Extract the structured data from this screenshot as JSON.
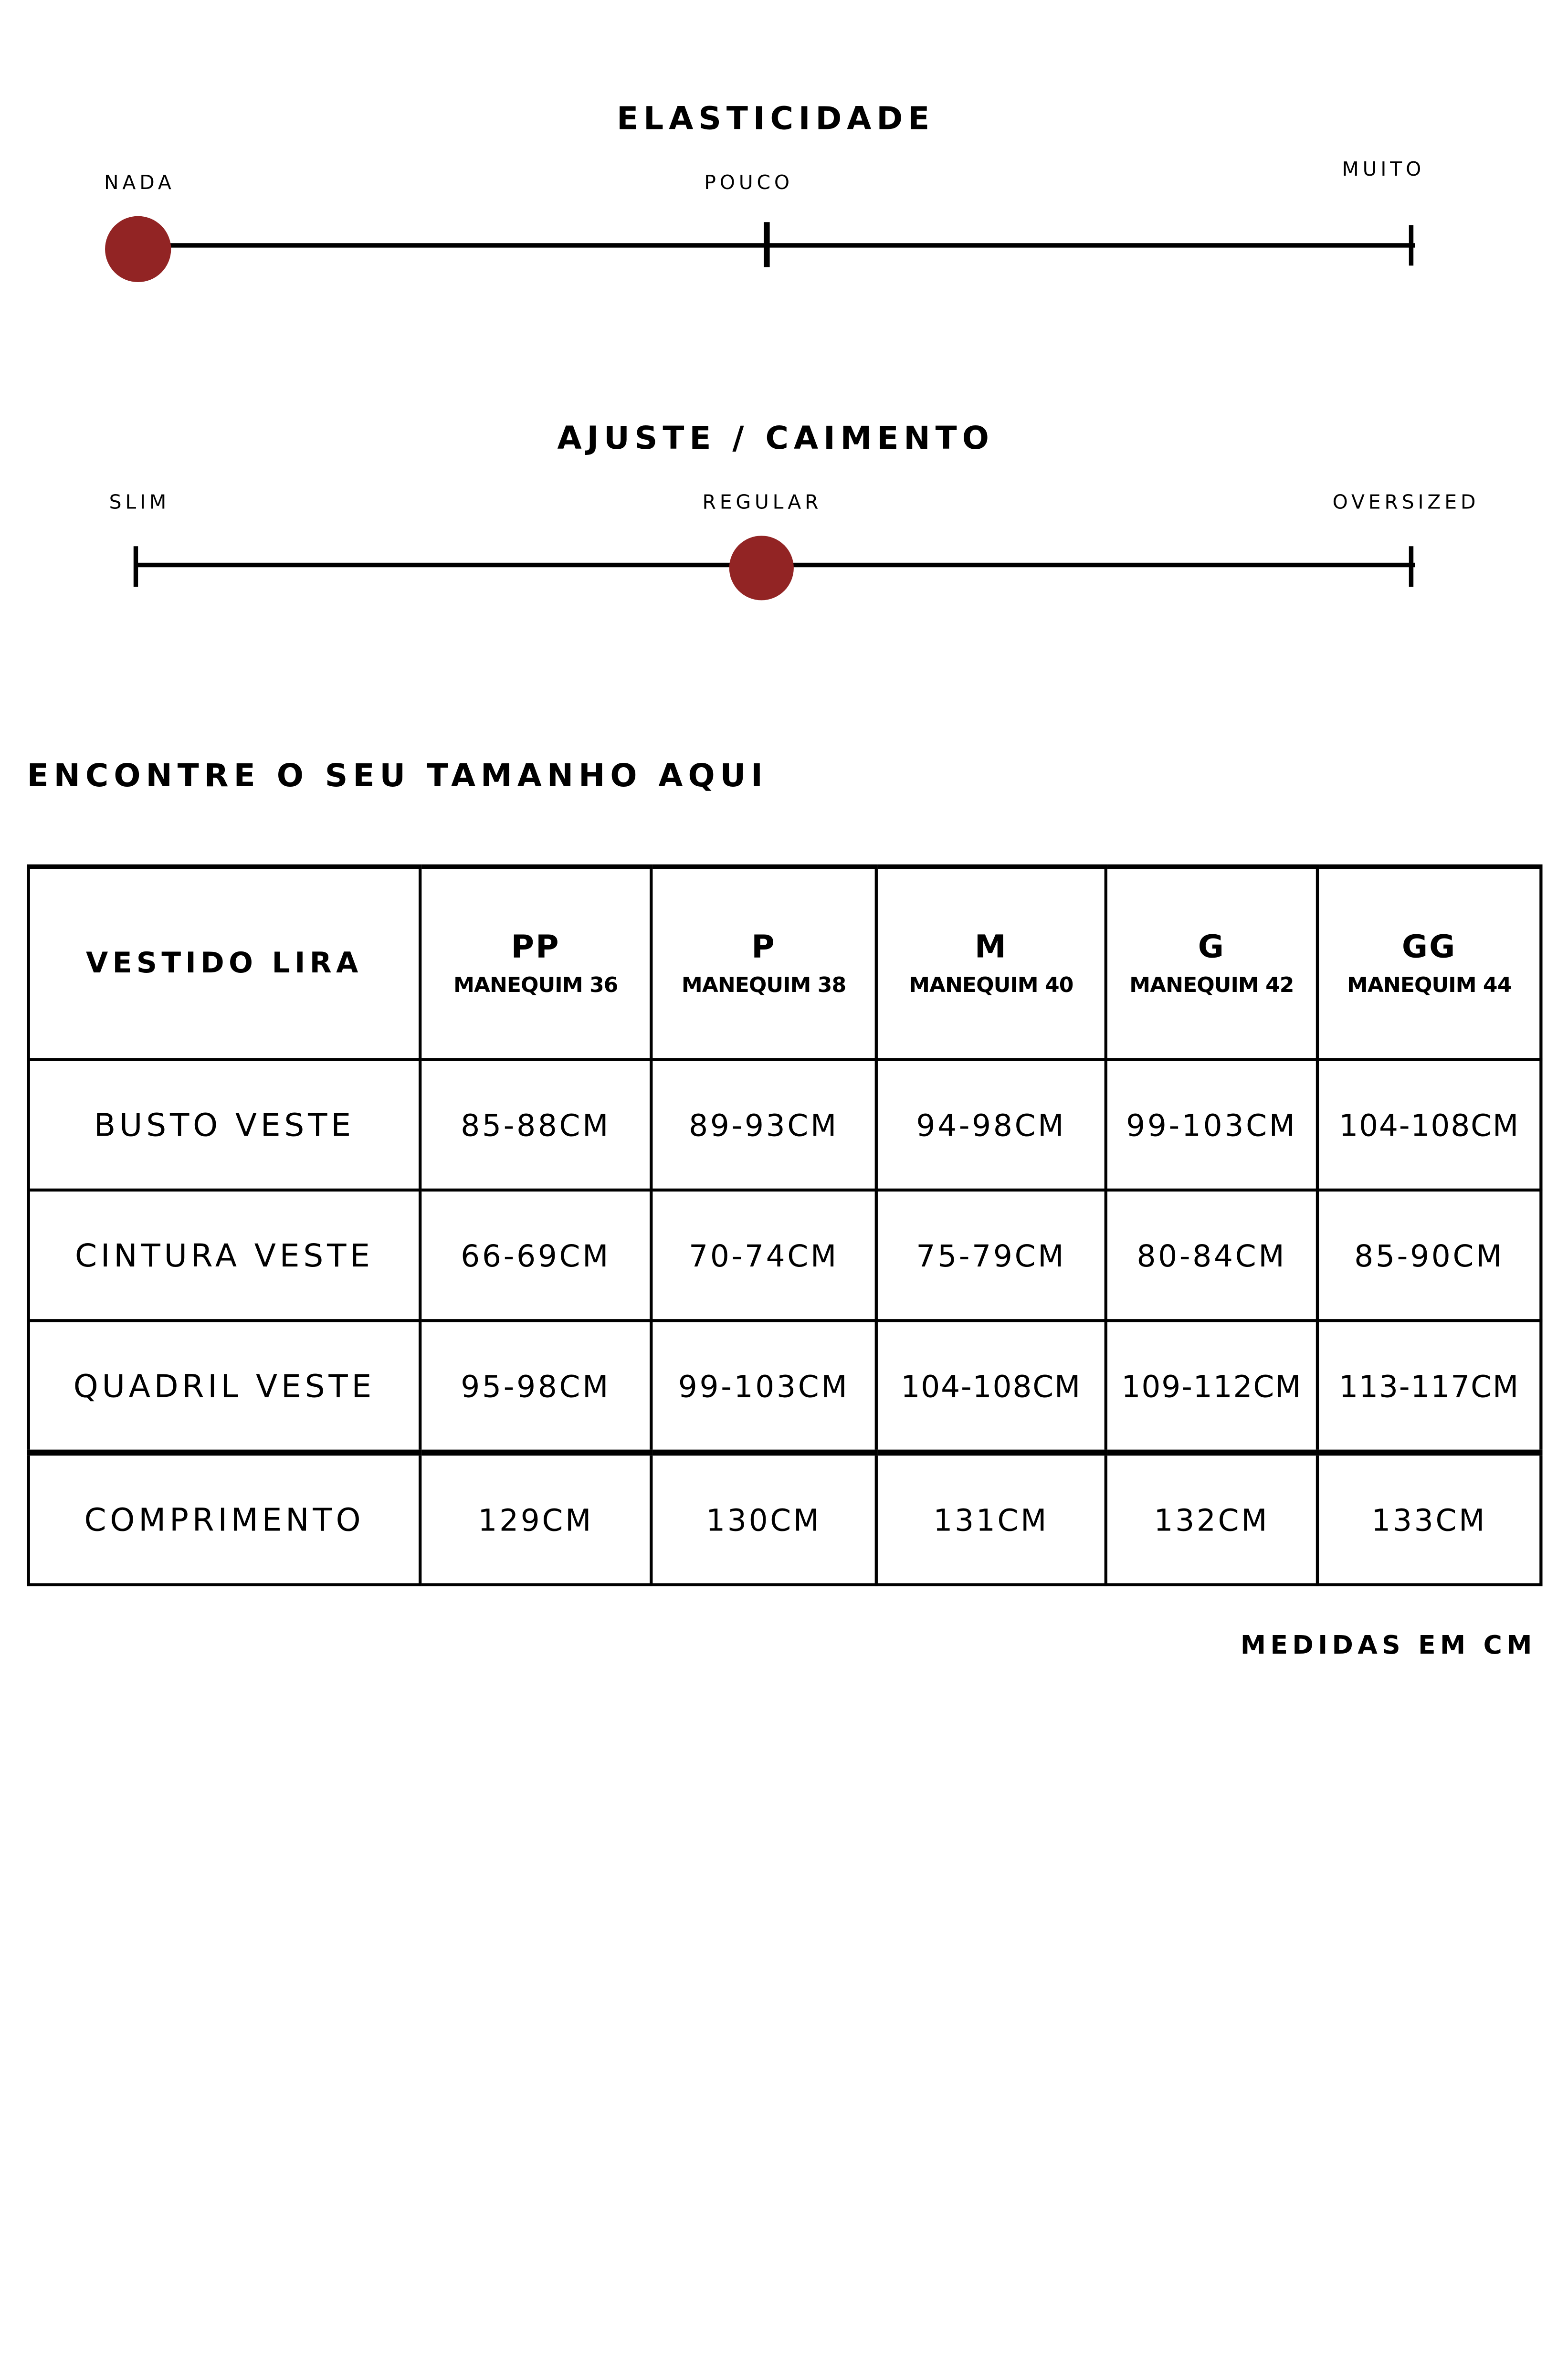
{
  "elasticity": {
    "title": "ELASTICIDADE",
    "labels": [
      "NADA",
      "POUCO",
      "MUITO"
    ],
    "selected": "NADA",
    "marker_color": "#922424"
  },
  "fit": {
    "title": "AJUSTE / CAIMENTO",
    "labels": [
      "SLIM",
      "REGULAR",
      "OVERSIZED"
    ],
    "selected": "REGULAR",
    "marker_color": "#922424"
  },
  "size_section": {
    "heading": "ENCONTRE O SEU TAMANHO AQUI",
    "footnote": "MEDIDAS EM CM"
  },
  "table": {
    "product": "VESTIDO LIRA",
    "columns": [
      {
        "size": "PP",
        "mannequin": "MANEQUIM 36"
      },
      {
        "size": "P",
        "mannequin": "MANEQUIM 38"
      },
      {
        "size": "M",
        "mannequin": "MANEQUIM 40"
      },
      {
        "size": "G",
        "mannequin": "MANEQUIM 42"
      },
      {
        "size": "GG",
        "mannequin": "MANEQUIM 44"
      }
    ],
    "rows": [
      {
        "label": "BUSTO VESTE",
        "values": [
          "85-88CM",
          "89-93CM",
          "94-98CM",
          "99-103CM",
          "104-108CM"
        ]
      },
      {
        "label": "CINTURA VESTE",
        "values": [
          "66-69CM",
          "70-74CM",
          "75-79CM",
          "80-84CM",
          "85-90CM"
        ]
      },
      {
        "label": "QUADRIL VESTE",
        "values": [
          "95-98CM",
          "99-103CM",
          "104-108CM",
          "109-112CM",
          "113-117CM"
        ]
      },
      {
        "label": "COMPRIMENTO",
        "values": [
          "129CM",
          "130CM",
          "131CM",
          "132CM",
          "133CM"
        ]
      }
    ]
  }
}
